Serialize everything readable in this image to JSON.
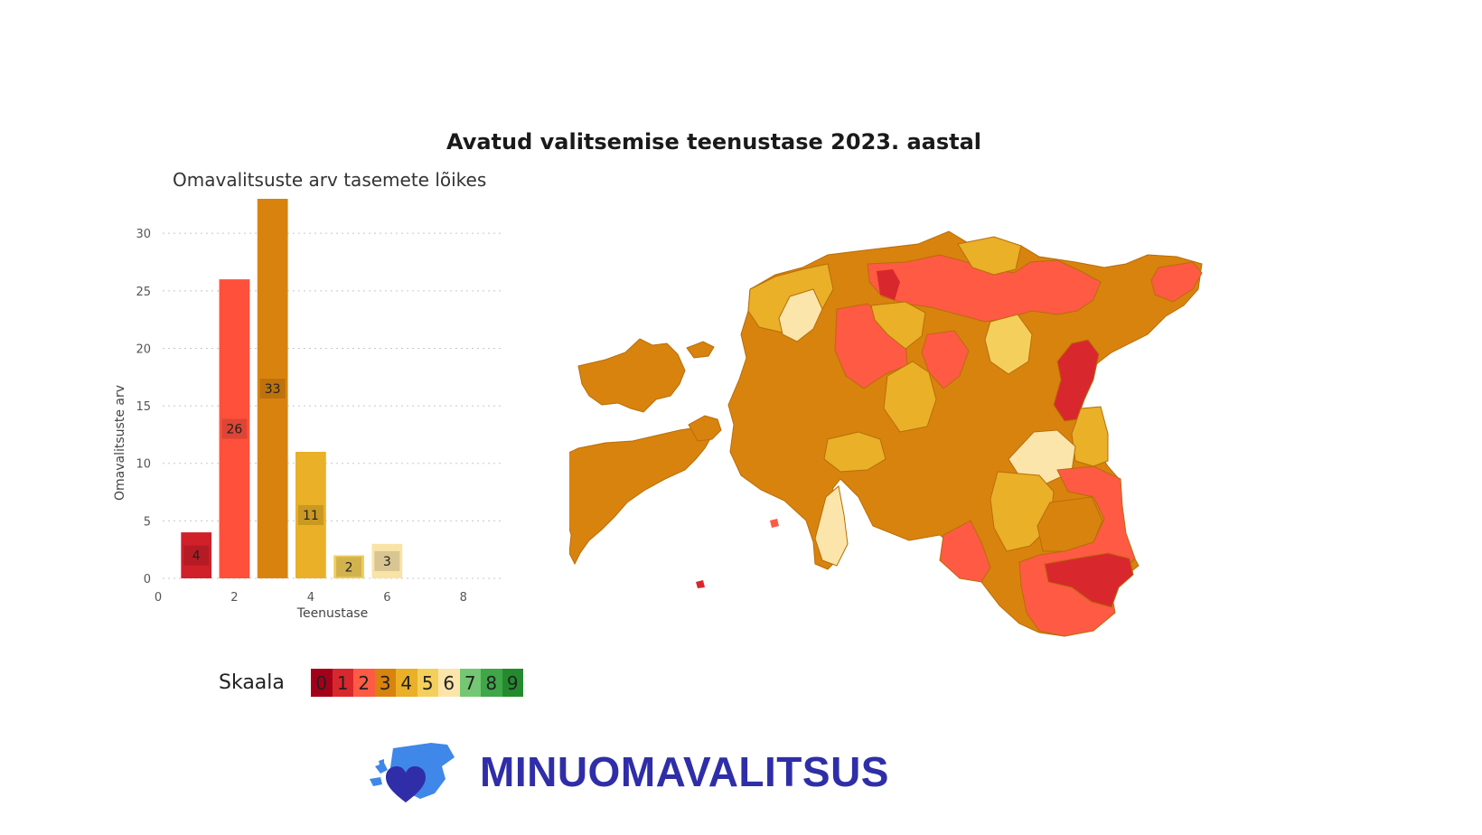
{
  "title": "Avatud valitsemise teenustase 2023. aastal",
  "chart_data": {
    "type": "bar",
    "title": "Omavalitsuste arv tasemete lõikes",
    "xlabel": "Teenustase",
    "ylabel": "Omavalitsuste arv",
    "x": [
      1,
      2,
      3,
      4,
      5,
      6
    ],
    "values": [
      4,
      26,
      33,
      11,
      2,
      3
    ],
    "xlim": [
      0,
      9
    ],
    "ylim": [
      0,
      33
    ],
    "x_ticks": [
      0,
      2,
      4,
      6,
      8
    ],
    "y_ticks": [
      0,
      5,
      10,
      15,
      20,
      25,
      30
    ],
    "grid": "horizontal dotted",
    "bar_colors": [
      "#d0202a",
      "#ff503c",
      "#d9830f",
      "#e9b028",
      "#f1cd5a",
      "#f9e3a7"
    ]
  },
  "legend": {
    "label": "Skaala",
    "items": [
      {
        "value": "0",
        "color": "#a50019"
      },
      {
        "value": "1",
        "color": "#d9282d"
      },
      {
        "value": "2",
        "color": "#ff5a44"
      },
      {
        "value": "3",
        "color": "#d9830f"
      },
      {
        "value": "4",
        "color": "#e9b028"
      },
      {
        "value": "5",
        "color": "#f5cf5c"
      },
      {
        "value": "6",
        "color": "#fbe5ab"
      },
      {
        "value": "7",
        "color": "#74c773"
      },
      {
        "value": "8",
        "color": "#3fa64a"
      },
      {
        "value": "9",
        "color": "#238b2d"
      }
    ]
  },
  "brand": {
    "name": "MINUOMAVALITSUS",
    "color": "#2f2ea8",
    "logo_icon": "heart-map-icon"
  }
}
